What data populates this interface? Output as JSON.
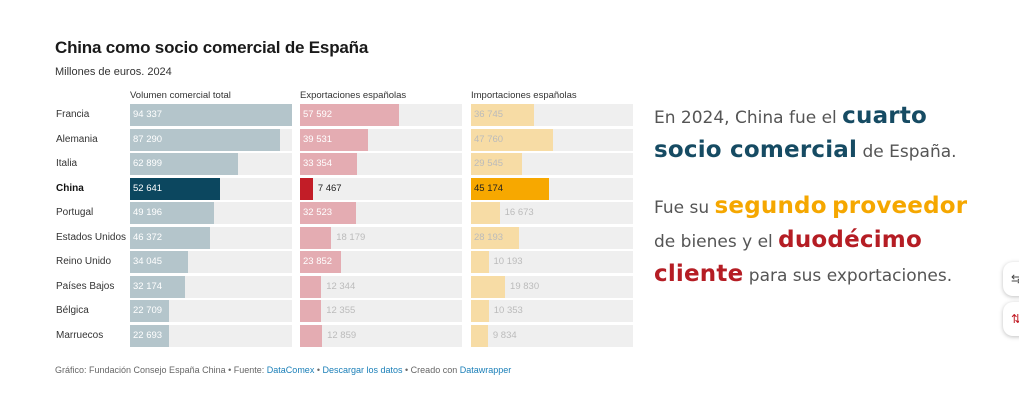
{
  "chart_data": {
    "type": "bar",
    "title": "China como socio comercial de España",
    "subtitle": "Millones de euros. 2024",
    "highlight": "China",
    "categories": [
      "Francia",
      "Alemania",
      "Italia",
      "China",
      "Portugal",
      "Estados Unidos",
      "Reino Unido",
      "Países Bajos",
      "Bélgica",
      "Marruecos"
    ],
    "series": [
      {
        "name": "Volumen comercial total",
        "values": [
          94337,
          87290,
          62899,
          52641,
          49196,
          46372,
          34045,
          32174,
          22709,
          22693
        ],
        "labels": [
          "94 337",
          "87 290",
          "62 899",
          "52 641",
          "49 196",
          "46 372",
          "34 045",
          "32 174",
          "22 709",
          "22 693"
        ],
        "color": "#b4c5cb",
        "highlight_color": "#0c475f"
      },
      {
        "name": "Exportaciones españolas",
        "values": [
          57592,
          39531,
          33354,
          7467,
          32523,
          18179,
          23852,
          12344,
          12355,
          12859
        ],
        "labels": [
          "57 592",
          "39 531",
          "33 354",
          "7 467",
          "32 523",
          "18 179",
          "23 852",
          "12 344",
          "12 355",
          "12 859"
        ],
        "color": "#e4acb2",
        "highlight_color": "#c21d27"
      },
      {
        "name": "Importaciones españolas",
        "values": [
          36745,
          47760,
          29545,
          45174,
          16673,
          28193,
          10193,
          19830,
          10353,
          9834
        ],
        "labels": [
          "36 745",
          "47 760",
          "29 545",
          "45 174",
          "16 673",
          "28 193",
          "10 193",
          "19 830",
          "10 353",
          "9 834"
        ],
        "color": "#f7dca5",
        "highlight_color": "#f7a800"
      }
    ],
    "xlim": [
      0,
      94337
    ]
  },
  "colors": {
    "track": "#efefef",
    "label_light": "#ffffff",
    "label_dark": "#222222",
    "label_muted": "#bbbbbb"
  },
  "footer": {
    "prefix": "Gráfico: Fundación Consejo España China • Fuente:",
    "source_link": "DataComex",
    "sep": " • ",
    "download_link": "Descargar los datos",
    "created": " • Creado con ",
    "tool_link": "Datawrapper"
  },
  "text_panel": {
    "p1_a": "En 2024, China fue el ",
    "p1_hl1": "cuarto",
    "p1_space": " ",
    "p1_hl2": "socio comercial",
    "p1_b": " de España.",
    "p2_a": "Fue su ",
    "p2_hl1": "segundo",
    "p2_space": " ",
    "p2_hl2": "proveedor",
    "p2_b": " de bienes y el ",
    "p2_hl3": "duodécimo cliente",
    "p2_c": " para sus exportaciones."
  },
  "edge_buttons": {
    "top_icon": "share-icon",
    "top_glyph": "⇆",
    "bottom_icon": "sort-icon",
    "bottom_glyph": "⇅"
  }
}
